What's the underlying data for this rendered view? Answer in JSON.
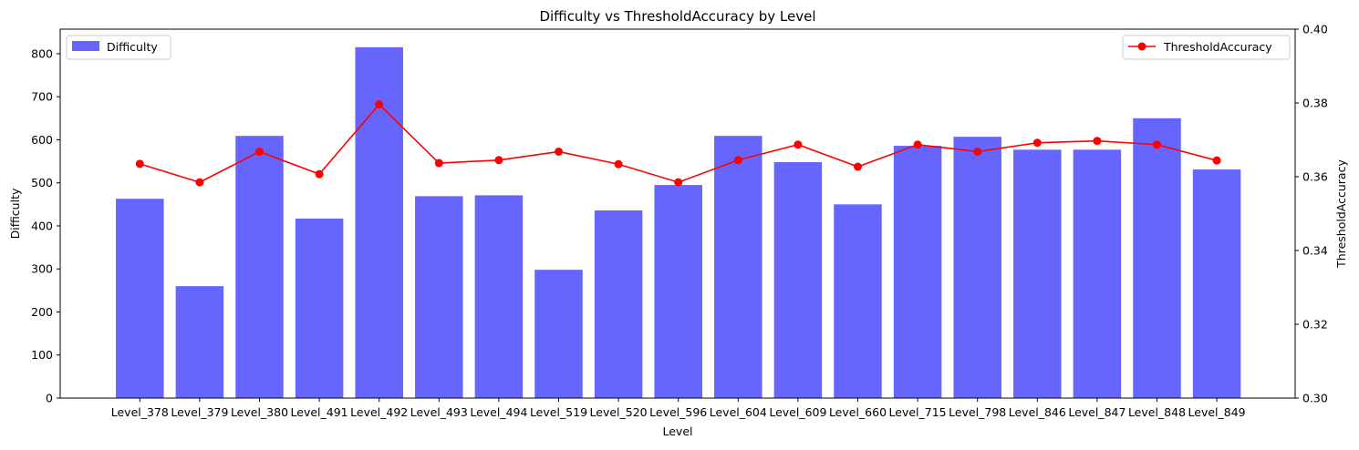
{
  "chart_data": {
    "type": "bar",
    "title": "Difficulty vs ThresholdAccuracy by Level",
    "xlabel": "Level",
    "ylabel": "Difficulty",
    "y2label": "ThresholdAccuracy",
    "categories": [
      "Level_378",
      "Level_379",
      "Level_380",
      "Level_491",
      "Level_492",
      "Level_493",
      "Level_494",
      "Level_519",
      "Level_520",
      "Level_596",
      "Level_604",
      "Level_609",
      "Level_660",
      "Level_715",
      "Level_798",
      "Level_846",
      "Level_847",
      "Level_848",
      "Level_849"
    ],
    "series": [
      {
        "name": "Difficulty",
        "type": "bar",
        "axis": "left",
        "color": "#6666ff",
        "values": [
          463,
          260,
          609,
          417,
          815,
          469,
          471,
          298,
          436,
          495,
          609,
          548,
          450,
          586,
          607,
          577,
          577,
          650,
          531
        ]
      },
      {
        "name": "ThresholdAccuracy",
        "type": "line",
        "axis": "right",
        "color": "#ff0000",
        "marker": "circle",
        "values": [
          0.3635,
          0.3585,
          0.3668,
          0.3607,
          0.3796,
          0.3637,
          0.3645,
          0.3668,
          0.3634,
          0.3585,
          0.3645,
          0.3687,
          0.3627,
          0.3687,
          0.3668,
          0.3692,
          0.3697,
          0.3687,
          0.3644
        ]
      }
    ],
    "ylim": [
      0,
      857
    ],
    "y2lim": [
      0.3,
      0.4
    ],
    "yticks": [
      "0",
      "100",
      "200",
      "300",
      "400",
      "500",
      "600",
      "700",
      "800"
    ],
    "y2ticks": [
      "0.30",
      "0.32",
      "0.34",
      "0.36",
      "0.38",
      "0.40"
    ],
    "legend_left_position": "top-left",
    "legend_right_position": "top-right",
    "grid": false
  }
}
